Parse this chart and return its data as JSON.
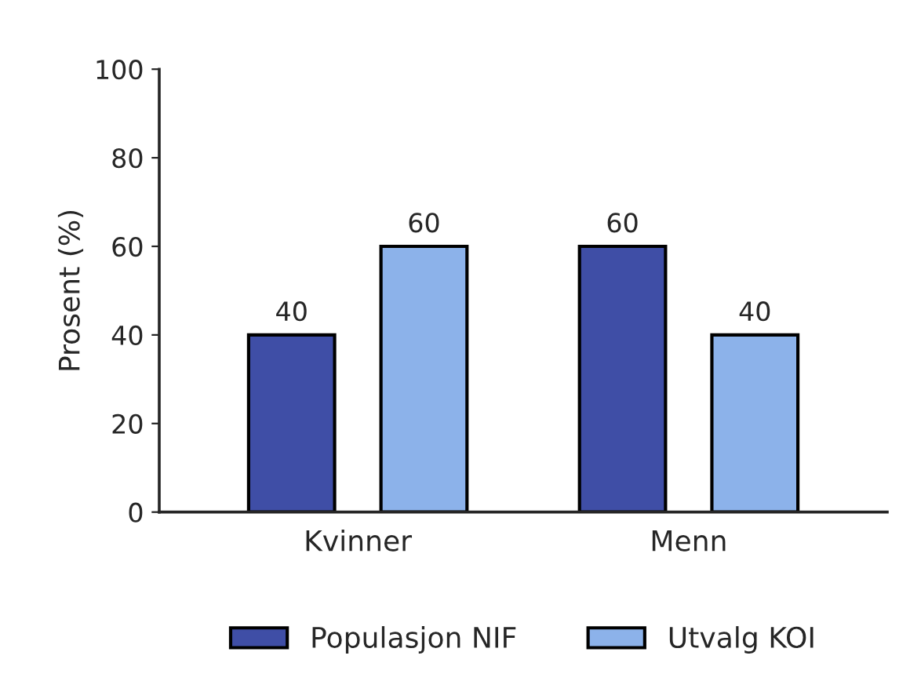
{
  "chart_data": {
    "type": "bar",
    "ylabel": "Prosent (%)",
    "categories": [
      "Kvinner",
      "Menn"
    ],
    "series": [
      {
        "name": "Populasjon NIF",
        "color": "#3f4ea6",
        "values": [
          40,
          60
        ]
      },
      {
        "name": "Utvalg KOI",
        "color": "#8cb2ea",
        "values": [
          60,
          40
        ]
      }
    ],
    "ylim": [
      0,
      100
    ],
    "yticks": [
      0,
      20,
      40,
      60,
      80,
      100
    ],
    "data_labels": true,
    "legend": "bottom",
    "grid": false
  }
}
